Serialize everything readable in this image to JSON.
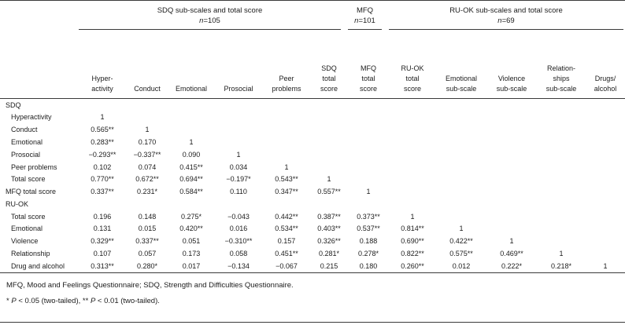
{
  "page": {
    "bg": "#ffffff",
    "text_color": "#1c1c1c",
    "rule_color": "#3a3a3a"
  },
  "table": {
    "groups": [
      {
        "title": "SDQ sub-scales and total score",
        "n_italic": "n",
        "n_rest": "=105",
        "span": 6
      },
      {
        "title": "MFQ",
        "n_italic": "n",
        "n_rest": "=101",
        "span": 1
      },
      {
        "title": "RU-OK sub-scales and total score",
        "n_italic": "n",
        "n_rest": "=69",
        "span": 5
      }
    ],
    "columns": [
      "Hyper-\nactivity",
      "Conduct",
      "Emotional",
      "Prosocial",
      "Peer\nproblems",
      "SDQ\ntotal\nscore",
      "MFQ\ntotal\nscore",
      "RU-OK\ntotal\nscore",
      "Emotional\nsub-scale",
      "Violence\nsub-scale",
      "Relation-\nships\nsub-scale",
      "Drugs/\nalcohol"
    ],
    "rows": [
      {
        "label": "SDQ",
        "indent": 0,
        "section": true,
        "cells": []
      },
      {
        "label": "Hyperactivity",
        "indent": 1,
        "cells": [
          "1"
        ]
      },
      {
        "label": "Conduct",
        "indent": 1,
        "cells": [
          "0.565**",
          "1"
        ]
      },
      {
        "label": "Emotional",
        "indent": 1,
        "cells": [
          "0.283**",
          "0.170",
          "1"
        ]
      },
      {
        "label": "Prosocial",
        "indent": 1,
        "cells": [
          "−0.293**",
          "−0.337**",
          "0.090",
          "1"
        ]
      },
      {
        "label": "Peer problems",
        "indent": 1,
        "cells": [
          "0.102",
          "0.074",
          "0.415**",
          "0.034",
          "1"
        ]
      },
      {
        "label": "Total score",
        "indent": 1,
        "cells": [
          "0.770**",
          "0.672**",
          "0.694**",
          "−0.197*",
          "0.543**",
          "1"
        ]
      },
      {
        "label": "MFQ total score",
        "indent": 0,
        "cells": [
          "0.337**",
          "0.231*",
          "0.584**",
          "0.110",
          "0.347**",
          "0.557**",
          "1"
        ]
      },
      {
        "label": "RU-OK",
        "indent": 0,
        "section": true,
        "cells": []
      },
      {
        "label": "Total score",
        "indent": 1,
        "cells": [
          "0.196",
          "0.148",
          "0.275*",
          "−0.043",
          "0.442**",
          "0.387**",
          "0.373**",
          "1"
        ]
      },
      {
        "label": "Emotional",
        "indent": 1,
        "cells": [
          "0.131",
          "0.015",
          "0.420**",
          "0.016",
          "0.534**",
          "0.403**",
          "0.537**",
          "0.814**",
          "1"
        ]
      },
      {
        "label": "Violence",
        "indent": 1,
        "cells": [
          "0.329**",
          "0.337**",
          "0.051",
          "−0.310**",
          "0.157",
          "0.326**",
          "0.188",
          "0.690**",
          "0.422**",
          "1"
        ]
      },
      {
        "label": "Relationship",
        "indent": 1,
        "cells": [
          "0.107",
          "0.057",
          "0.173",
          "0.058",
          "0.451**",
          "0.281*",
          "0.278*",
          "0.822**",
          "0.575**",
          "0.469**",
          "1"
        ]
      },
      {
        "label": "Drug and alcohol",
        "indent": 1,
        "cells": [
          "0.313**",
          "0.280*",
          "0.017",
          "−0.134",
          "−0.067",
          "0.215",
          "0.180",
          "0.260**",
          "0.012",
          "0.222*",
          "0.218*",
          "1"
        ]
      }
    ]
  },
  "footnotes": {
    "abbrev": "MFQ, Mood and Feelings Questionnaire; SDQ, Strength and Difficulties Questionnaire.",
    "sig_parts": {
      "s1": "* ",
      "p1": "P",
      "s2": " < 0.05 (two-tailed), ** ",
      "p2": "P",
      "s3": " < 0.01 (two-tailed)."
    }
  }
}
